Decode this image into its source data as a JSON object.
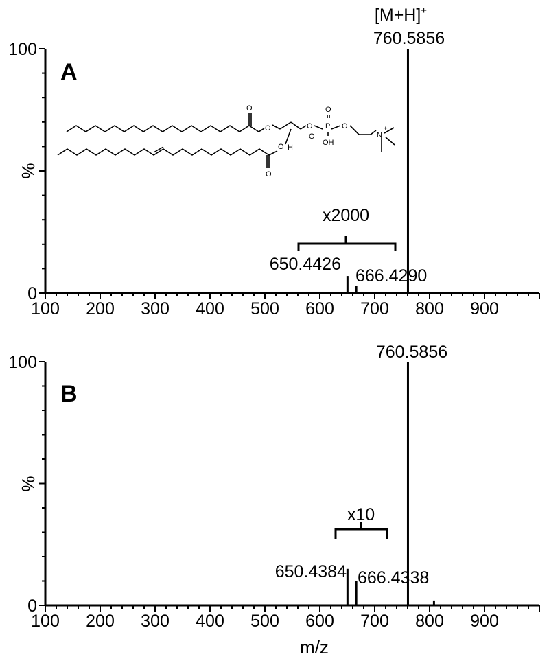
{
  "x_axis_label": "m/z",
  "chart_data": [
    {
      "type": "bar",
      "panel_label": "A",
      "xlabel": "",
      "ylabel": "%",
      "xlim": [
        100,
        1000
      ],
      "ylim": [
        0,
        100
      ],
      "x_ticks": [
        100,
        200,
        300,
        400,
        500,
        600,
        700,
        800,
        900
      ],
      "y_ticks": [
        0,
        100
      ],
      "y_tick_mid_label": "%",
      "peaks": [
        {
          "mz": 650.4426,
          "intensity": 7
        },
        {
          "mz": 666.429,
          "intensity": 3
        },
        {
          "mz": 760.5856,
          "intensity": 100
        }
      ],
      "annotations": [
        {
          "text": "[M+H]",
          "sup": "+",
          "mz": 760.5856
        },
        {
          "text": "760.5856",
          "mz": 760.5856
        },
        {
          "text": "650.4426",
          "mz": 650.4426
        },
        {
          "text": "666.4290",
          "mz": 666.429
        }
      ],
      "magnification": {
        "text": "x2000",
        "from_mz": 550,
        "to_mz": 732
      },
      "structure_labels": [
        "O",
        "O",
        "O",
        "O",
        "P",
        "O",
        "OH",
        "O",
        "N",
        "+",
        "H",
        "O",
        "O"
      ]
    },
    {
      "type": "bar",
      "panel_label": "B",
      "xlabel": "m/z",
      "ylabel": "%",
      "xlim": [
        100,
        1000
      ],
      "ylim": [
        0,
        100
      ],
      "x_ticks": [
        100,
        200,
        300,
        400,
        500,
        600,
        700,
        800,
        900
      ],
      "y_ticks": [
        0,
        100
      ],
      "peaks": [
        {
          "mz": 650.4384,
          "intensity": 15
        },
        {
          "mz": 666.4338,
          "intensity": 10
        },
        {
          "mz": 760.5856,
          "intensity": 100
        },
        {
          "mz": 808,
          "intensity": 2
        }
      ],
      "annotations": [
        {
          "text": "760.5856",
          "mz": 760.5856
        },
        {
          "text": "650.4384",
          "mz": 650.4384
        },
        {
          "text": "666.4338",
          "mz": 666.4338
        }
      ],
      "magnification": {
        "text": "x10",
        "from_mz": 617,
        "to_mz": 715
      }
    }
  ]
}
